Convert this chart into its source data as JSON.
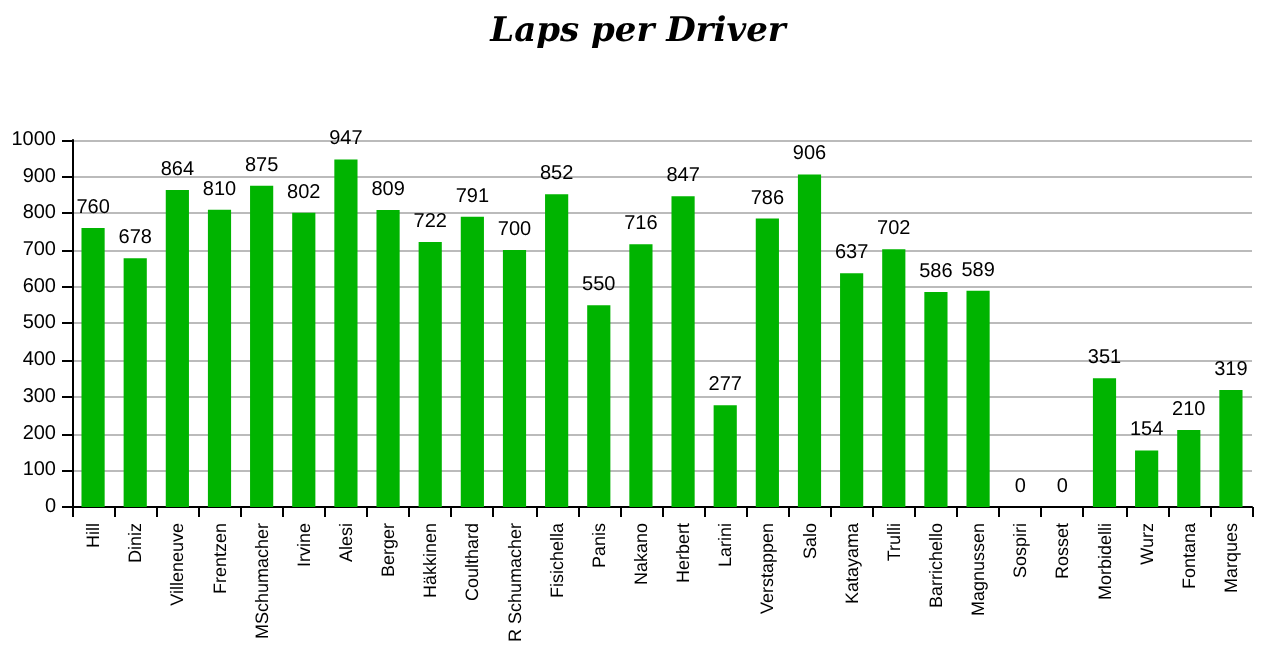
{
  "chart_data": {
    "type": "bar",
    "title": "Laps per Driver",
    "categories": [
      "Hill",
      "Diniz",
      "Villeneuve",
      "Frentzen",
      "MSchumacher",
      "Irvine",
      "Alesi",
      "Berger",
      "Häkkinen",
      "Coulthard",
      "R Schumacher",
      "Fisichella",
      "Panis",
      "Nakano",
      "Herbert",
      "Larini",
      "Verstappen",
      "Salo",
      "Katayama",
      "Trulli",
      "Barrichello",
      "Magnussen",
      "Sospiri",
      "Rosset",
      "Morbidelli",
      "Wurz",
      "Fontana",
      "Marques"
    ],
    "values": [
      760,
      678,
      864,
      810,
      875,
      802,
      947,
      809,
      722,
      791,
      700,
      852,
      550,
      716,
      847,
      277,
      786,
      906,
      637,
      702,
      586,
      589,
      0,
      0,
      351,
      154,
      210,
      319
    ],
    "color": "#00b400",
    "data_labels": true,
    "grid": "y",
    "ylim": [
      0,
      1000
    ],
    "yticks": [
      0,
      100,
      200,
      300,
      400,
      500,
      600,
      700,
      800,
      900,
      1000
    ]
  }
}
